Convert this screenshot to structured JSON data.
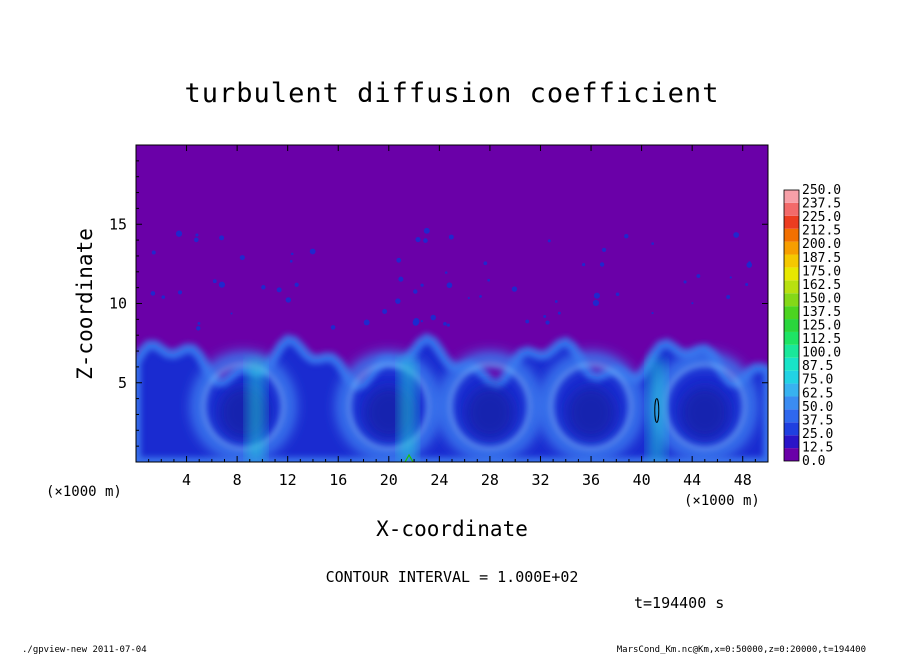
{
  "figure": {
    "title": "turbulent diffusion coefficient",
    "contour_interval": "CONTOUR INTERVAL = 1.000E+02",
    "time_label": "t=194400 s",
    "footer_left": "./gpview-new   2011-07-04",
    "footer_right": "MarsCond_Km.nc@Km,x=0:50000,z=0:20000,t=194400"
  },
  "colors": {
    "background": "#6a00a8",
    "deep_blue": "#1a2bd0",
    "mid_blue": "#3a78ee",
    "cyan": "#22e0d8",
    "green_contour": "#22c000"
  },
  "chart_data": {
    "type": "heatmap",
    "title": "turbulent diffusion coefficient",
    "xlabel": "X-coordinate",
    "ylabel": "Z-coordinate",
    "x_unit": "(×1000 m)",
    "y_unit": "(×1000 m)",
    "xlim": [
      0,
      50
    ],
    "ylim": [
      0,
      20
    ],
    "x_ticks": [
      4,
      8,
      12,
      16,
      20,
      24,
      28,
      32,
      36,
      40,
      44,
      48
    ],
    "y_ticks": [
      5,
      10,
      15
    ],
    "colorbar": {
      "levels": [
        "0.0",
        "12.5",
        "25.0",
        "37.5",
        "50.0",
        "62.5",
        "75.0",
        "87.5",
        "100.0",
        "112.5",
        "125.0",
        "137.5",
        "150.0",
        "162.5",
        "175.0",
        "187.5",
        "200.0",
        "212.5",
        "225.0",
        "237.5",
        "250.0"
      ],
      "colors": [
        "#6a00a8",
        "#2a14c8",
        "#1f3fe0",
        "#2f68ee",
        "#3b8cf2",
        "#38b2f0",
        "#22d2e4",
        "#18e4c8",
        "#1ae89a",
        "#1ee464",
        "#2ad63c",
        "#4cd420",
        "#84d818",
        "#b8e010",
        "#e8e800",
        "#f5c800",
        "#f79e00",
        "#f27000",
        "#ec3c20",
        "#f26a6a",
        "#f7a0a8"
      ]
    },
    "turbulent_layer_top_km": 7.5,
    "convective_cell_centers_km": [
      8.5,
      20,
      28,
      36,
      45
    ],
    "peak_contour": {
      "x_km": 41.2,
      "z_range_km": [
        2.5,
        4
      ]
    }
  }
}
